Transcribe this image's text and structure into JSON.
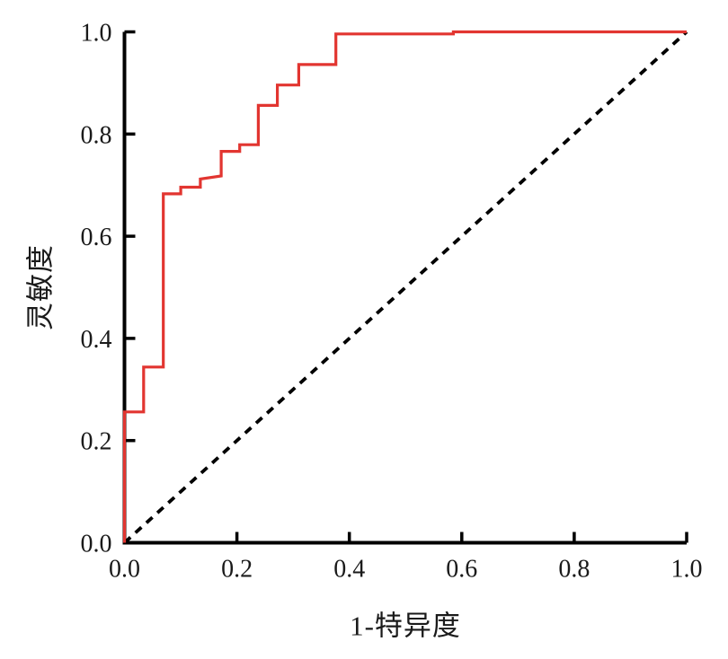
{
  "figure": {
    "background": "#ffffff",
    "text_color": "#1a1a1a"
  },
  "chart_data": {
    "type": "line",
    "subtype": "roc-curve",
    "title": "",
    "xlabel": "1-特异度",
    "ylabel": "灵敏度",
    "xlim": [
      0,
      1
    ],
    "ylim": [
      0,
      1
    ],
    "grid": false,
    "legend": false,
    "x_ticks": [
      0.0,
      0.2,
      0.4,
      0.6,
      0.8,
      1.0
    ],
    "x_tick_labels": [
      "0.0",
      "0.2",
      "0.4",
      "0.6",
      "0.8",
      "1.0"
    ],
    "y_ticks": [
      0.0,
      0.2,
      0.4,
      0.6,
      0.8,
      1.0
    ],
    "y_tick_labels": [
      "0.0",
      "0.2",
      "0.4",
      "0.6",
      "0.8",
      "1.0"
    ],
    "series": [
      {
        "name": "roc-curve",
        "type": "step",
        "color": "#e23530",
        "style": "solid",
        "points": [
          [
            0.0,
            0.0
          ],
          [
            0.0,
            0.256
          ],
          [
            0.034,
            0.256
          ],
          [
            0.034,
            0.344
          ],
          [
            0.069,
            0.344
          ],
          [
            0.069,
            0.683
          ],
          [
            0.1,
            0.683
          ],
          [
            0.1,
            0.696
          ],
          [
            0.135,
            0.696
          ],
          [
            0.135,
            0.712
          ],
          [
            0.172,
            0.718
          ],
          [
            0.172,
            0.766
          ],
          [
            0.205,
            0.766
          ],
          [
            0.205,
            0.779
          ],
          [
            0.238,
            0.779
          ],
          [
            0.238,
            0.856
          ],
          [
            0.272,
            0.856
          ],
          [
            0.272,
            0.896
          ],
          [
            0.31,
            0.896
          ],
          [
            0.31,
            0.936
          ],
          [
            0.376,
            0.936
          ],
          [
            0.376,
            0.996
          ],
          [
            0.585,
            0.996
          ],
          [
            0.585,
            1.0
          ],
          [
            1.0,
            1.0
          ]
        ]
      },
      {
        "name": "reference-diagonal",
        "type": "line",
        "color": "#000000",
        "style": "dashed",
        "points": [
          [
            0.0,
            0.0
          ],
          [
            1.0,
            1.0
          ]
        ]
      }
    ]
  }
}
